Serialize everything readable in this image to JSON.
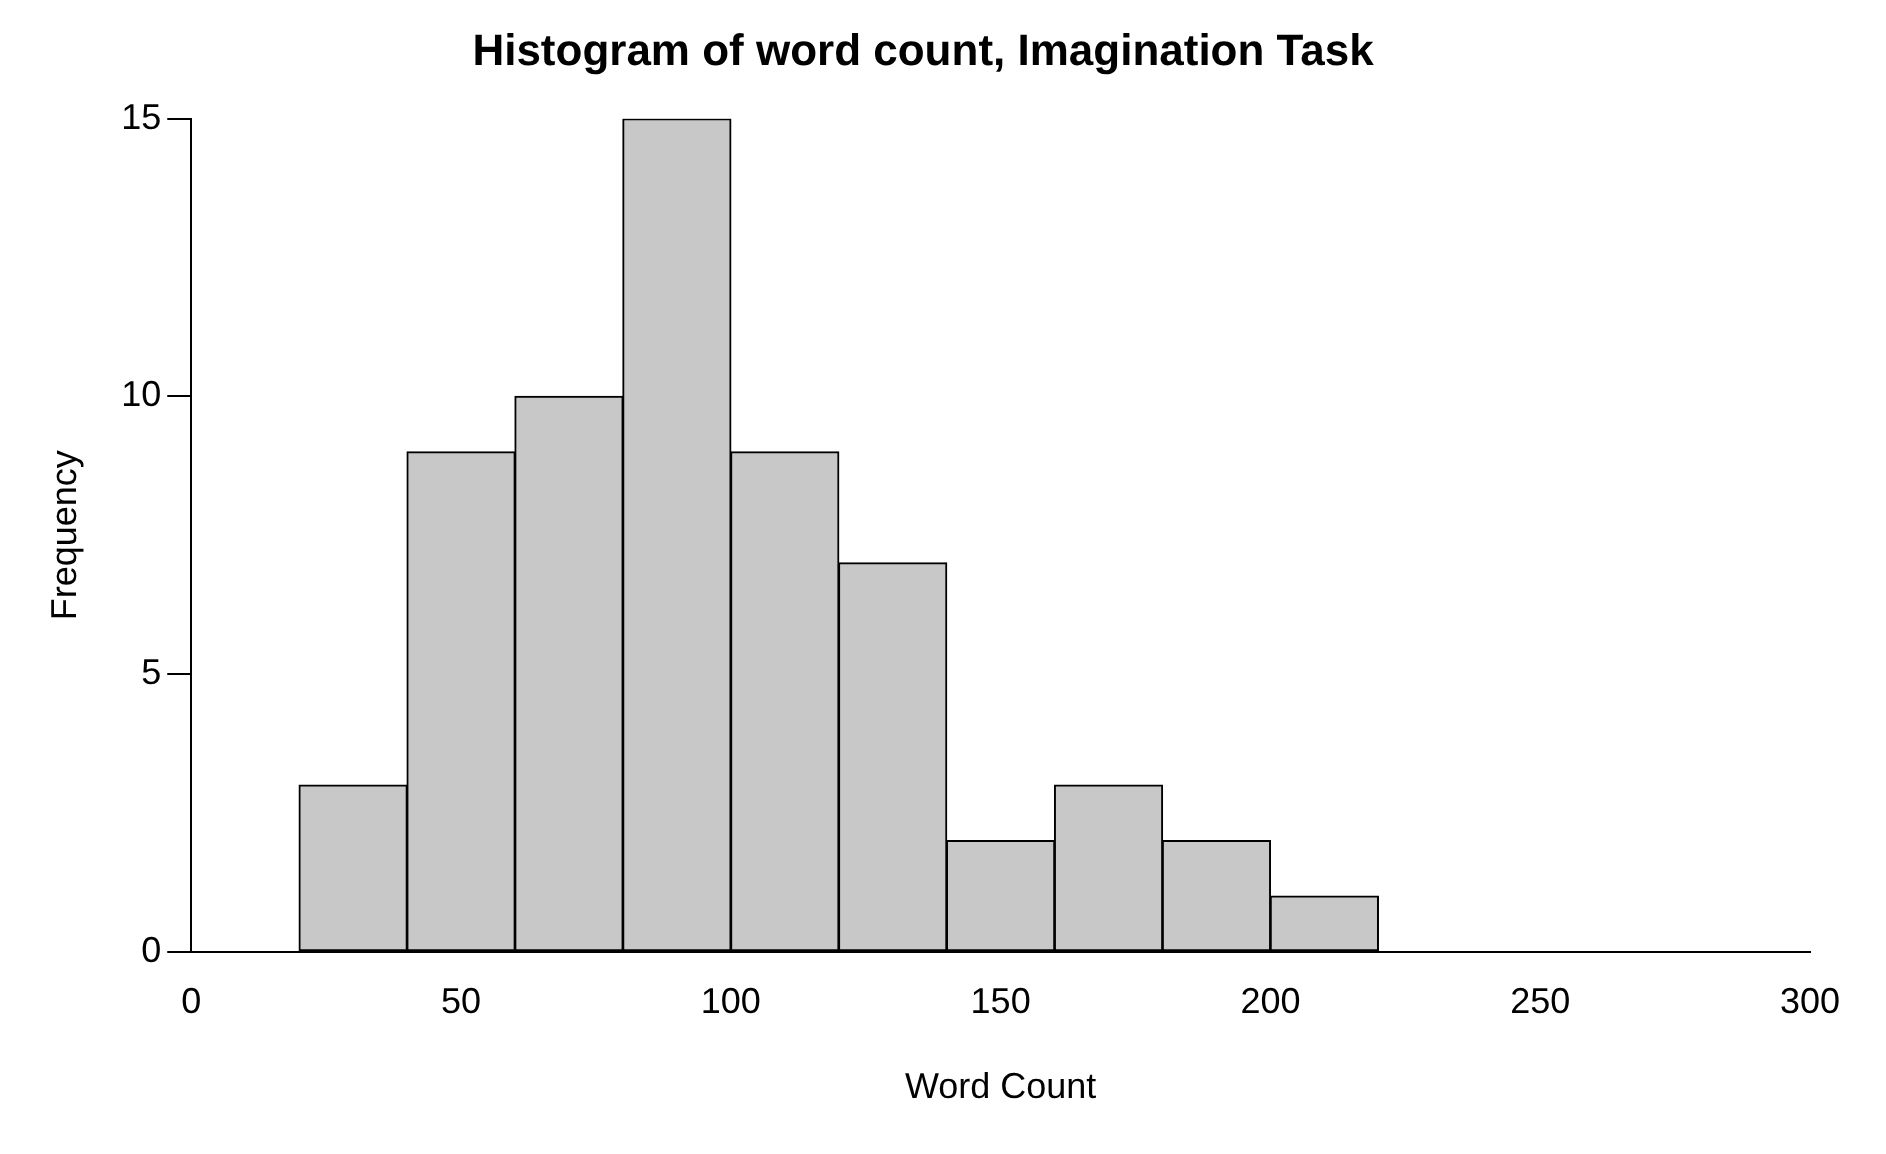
{
  "chart_data": {
    "type": "histogram",
    "title": "Histogram of word count, Imagination Task",
    "xlabel": "Word Count",
    "ylabel": "Frequency",
    "bins": [
      0,
      20,
      40,
      60,
      80,
      100,
      120,
      140,
      160,
      180,
      200,
      220,
      240,
      260,
      280,
      300
    ],
    "values": [
      0,
      3,
      9,
      10,
      15,
      9,
      7,
      2,
      3,
      2,
      1,
      0,
      0,
      0,
      0
    ],
    "color": "#c8c8c8",
    "xlim": [
      0,
      300
    ],
    "xticks": [
      0,
      50,
      100,
      150,
      200,
      250,
      300
    ],
    "ylim": [
      0,
      15
    ],
    "yticks": [
      0,
      5,
      10,
      15
    ],
    "grid": false,
    "legend": false
  }
}
